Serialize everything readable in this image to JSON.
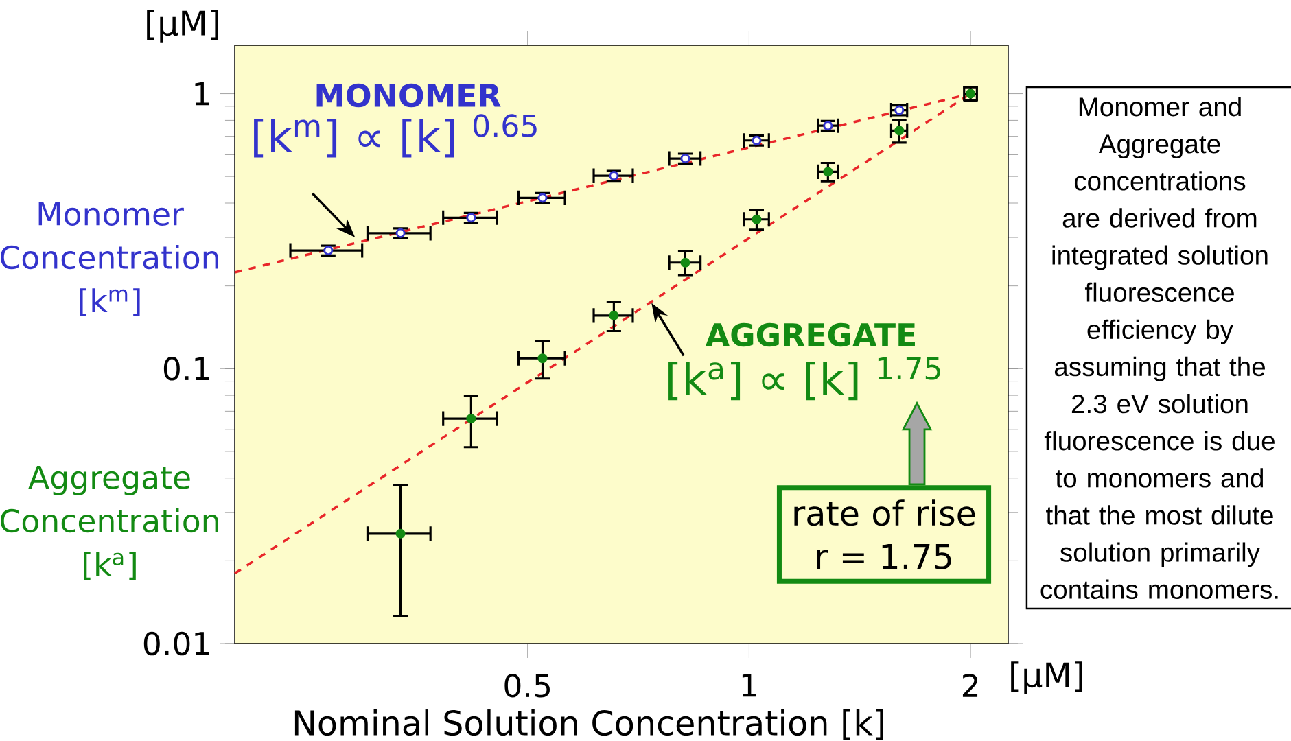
{
  "chart_data": {
    "type": "scatter",
    "log": "xy",
    "xlabel": "Nominal Solution Concentration [k]",
    "ylabel": "[μM]",
    "xlim": [
      0.2,
      2.25
    ],
    "xticks": [
      0.5,
      1,
      2
    ],
    "ylim": [
      0.01,
      1.5
    ],
    "yticks": [
      0.01,
      0.1,
      1
    ],
    "series": [
      {
        "name": "Monomer Concentration [k$^{m}$]",
        "color": "#3333cc",
        "marker": "circle",
        "x": [
          0.268,
          0.336,
          0.419,
          0.524,
          0.655,
          0.819,
          1.024,
          1.28,
          1.6
        ],
        "values": [
          0.269,
          0.311,
          0.354,
          0.418,
          0.503,
          0.581,
          0.676,
          0.765,
          0.871
        ],
        "errors": [
          0.011,
          0.0128,
          0.0145,
          0.017,
          0.021,
          0.024,
          0.028,
          0.031,
          0.036
        ],
        "xerrors": [
          0.03,
          0.033,
          0.035,
          0.038,
          0.04,
          0.04,
          0.04,
          0.04,
          0.04
        ]
      },
      {
        "name": "Aggregate Concentration [k$^{a}$]",
        "color": "#138a13",
        "marker": "circle",
        "x": [
          0.336,
          0.419,
          0.524,
          0.655,
          0.819,
          1.024,
          1.28,
          1.6,
          2.0
        ],
        "values": [
          0.0251,
          0.0658,
          0.109,
          0.156,
          0.243,
          0.349,
          0.52,
          0.734,
          1.0
        ],
        "errors": [
          0.0125,
          0.014,
          0.017,
          0.019,
          0.024,
          0.029,
          0.04,
          0.07,
          0.055
        ],
        "xerrors": [
          0.033,
          0.035,
          0.038,
          0.04,
          0.04,
          0.04,
          0.04,
          0.04,
          0.04
        ]
      },
      {
        "type": "line",
        "color": "#e8262a",
        "marker": "none",
        "line_style": "dashed",
        "x": [
          0.2,
          2.0
        ],
        "values": [
          0.224,
          1.0
        ]
      },
      {
        "type": "line",
        "color": "#e8262a",
        "marker": "none",
        "line_style": "dashed",
        "x": [
          0.2,
          2.0
        ],
        "values": [
          0.018,
          1.0
        ]
      }
    ],
    "annotations": [
      "MONOMER",
      {
        "text": "[k$^{m}$] ∝ [k] $^{0.65}$",
        "x": 0.293,
        "y": 0.296
      },
      "AGGREGATE",
      {
        "text": "[k$^{a}$] ∝ [k] $^{1.75}$",
        "x": 0.733,
        "y": 0.176
      },
      "rate of rise r = 1.75",
      "Monomer and Aggregate concentrations are derived from integrated solution fluorescence efficiency by assuming that the 2.3 eV solution fluorescence is due to monomers and that the most dilute solution primarily contains monomers.",
      "[μM]"
    ]
  }
}
